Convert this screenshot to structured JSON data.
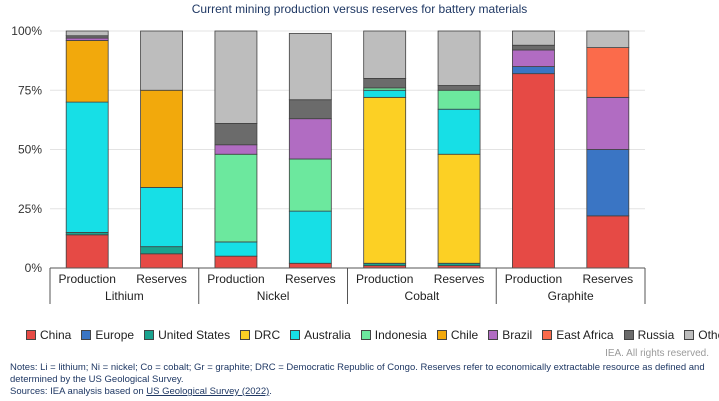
{
  "chart_data": {
    "type": "bar",
    "stacked": true,
    "title": "Current mining production versus reserves for battery materials",
    "yticks": [
      "0%",
      "25%",
      "50%",
      "75%",
      "100%"
    ],
    "ylim": [
      0,
      100
    ],
    "groups": [
      {
        "name": "Lithium",
        "bars": [
          "Production",
          "Reserves"
        ]
      },
      {
        "name": "Nickel",
        "bars": [
          "Production",
          "Reserves"
        ]
      },
      {
        "name": "Cobalt",
        "bars": [
          "Production",
          "Reserves"
        ]
      },
      {
        "name": "Graphite",
        "bars": [
          "Production",
          "Reserves"
        ]
      }
    ],
    "categories": [
      "Lithium Production",
      "Lithium Reserves",
      "Nickel Production",
      "Nickel Reserves",
      "Cobalt Production",
      "Cobalt Reserves",
      "Graphite Production",
      "Graphite Reserves"
    ],
    "series": [
      {
        "name": "China",
        "color": "#e64a45",
        "values": [
          14,
          6,
          5,
          2,
          1,
          1,
          82,
          22
        ]
      },
      {
        "name": "Europe",
        "color": "#3a75c4",
        "values": [
          0,
          0,
          0,
          0,
          0,
          0,
          3,
          28
        ]
      },
      {
        "name": "United States",
        "color": "#1aa38f",
        "values": [
          1,
          3,
          0,
          0,
          1,
          1,
          0,
          0
        ]
      },
      {
        "name": "DRC",
        "color": "#fcd024",
        "values": [
          0,
          0,
          0,
          0,
          70,
          46,
          0,
          0
        ]
      },
      {
        "name": "Australia",
        "color": "#17dfe6",
        "values": [
          55,
          25,
          6,
          22,
          3,
          19,
          0,
          0
        ]
      },
      {
        "name": "Indonesia",
        "color": "#6ce89e",
        "values": [
          0,
          0,
          37,
          22,
          1,
          8,
          0,
          0
        ]
      },
      {
        "name": "Chile",
        "color": "#f2a90c",
        "values": [
          26,
          41,
          0,
          0,
          0,
          0,
          0,
          0
        ]
      },
      {
        "name": "Brazil",
        "color": "#b16cc2",
        "values": [
          1,
          0,
          4,
          17,
          0,
          0,
          7,
          22
        ]
      },
      {
        "name": "East Africa",
        "color": "#fb6b4b",
        "values": [
          0,
          0,
          0,
          0,
          0,
          0,
          0,
          21
        ]
      },
      {
        "name": "Russia",
        "color": "#6b6b6b",
        "values": [
          1,
          0,
          9,
          8,
          4,
          2,
          2,
          0
        ]
      },
      {
        "name": "Other",
        "color": "#bdbdbd",
        "values": [
          2,
          25,
          39,
          28,
          20,
          23,
          6,
          7
        ]
      }
    ]
  },
  "footer": {
    "rights": "IEA. All rights reserved.",
    "notes": "Notes: Li = lithium; Ni = nickel; Co = cobalt; Gr = graphite; DRC = Democratic Republic of Congo. Reserves refer to economically extractable resource as defined and determined by the US Geological Survey.",
    "sources_prefix": "Sources: IEA analysis based on ",
    "sources_link": "US Geological Survey (2022)",
    "sources_suffix": "."
  }
}
